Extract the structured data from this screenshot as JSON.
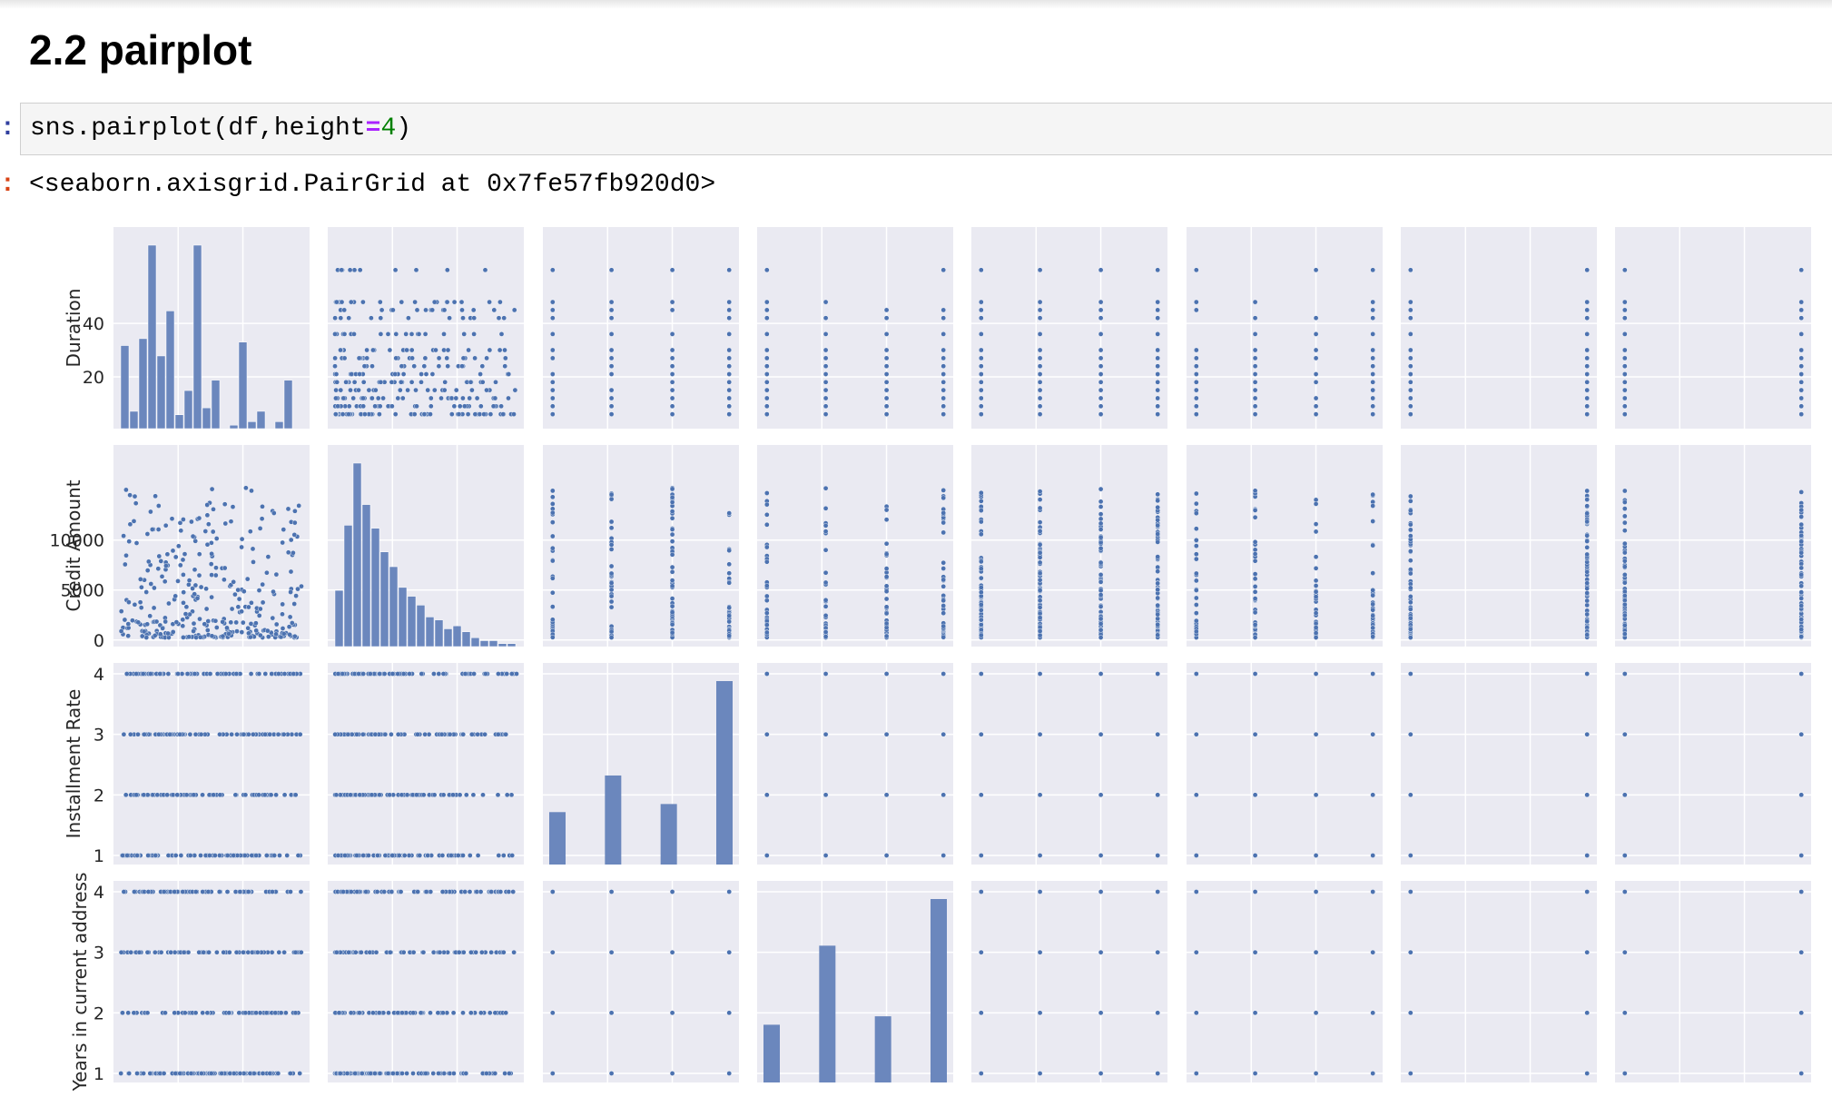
{
  "section": {
    "heading": "2.2 pairplot"
  },
  "cell_in": {
    "prompt": ":",
    "code_prefix": "sns.pairplot(df,height",
    "code_op": "=",
    "code_num": "4",
    "code_suffix": ")"
  },
  "cell_out": {
    "prompt": ":",
    "text": "<seaborn.axisgrid.PairGrid at 0x7fe57fb920d0>"
  },
  "chart_data": {
    "type": "scatter",
    "kind": "pairplot",
    "colors": {
      "background": "#eaeaf2",
      "grid": "#ffffff",
      "marker": "#4c72b0",
      "hist": "#6b87bd"
    },
    "grid": true,
    "rows": [
      {
        "name": "Duration",
        "ticks": [
          20,
          40
        ],
        "range": [
          4,
          72
        ]
      },
      {
        "name": "Credit Amount",
        "ticks": [
          0,
          5000,
          10000
        ],
        "range": [
          250,
          18424
        ]
      },
      {
        "name": "Installment Rate",
        "ticks": [
          1,
          2,
          3,
          4
        ],
        "range": [
          1,
          4
        ]
      },
      {
        "name": "Years in current address",
        "ticks": [
          1,
          2,
          3,
          4
        ],
        "range": [
          1,
          4
        ]
      }
    ],
    "columns_visible": 8,
    "histograms": {
      "Duration": [
        24,
        5,
        26,
        53,
        21,
        34,
        4,
        11,
        53,
        6,
        14,
        0,
        1,
        25,
        2,
        5,
        0,
        2,
        14,
        0
      ],
      "Credit Amount": [
        19,
        41,
        62,
        48,
        40,
        32,
        27,
        20,
        17,
        14,
        10,
        9,
        6,
        7,
        5,
        3,
        2,
        2,
        1,
        1
      ],
      "Installment Rate": [
        {
          "x": 1,
          "count": 136
        },
        {
          "x": 2,
          "count": 231
        },
        {
          "x": 3,
          "count": 157
        },
        {
          "x": 4,
          "count": 476
        }
      ],
      "Years in current address": [
        {
          "x": 1,
          "count": 130
        },
        {
          "x": 2,
          "count": 308
        },
        {
          "x": 3,
          "count": 149
        },
        {
          "x": 4,
          "count": 413
        }
      ]
    }
  }
}
